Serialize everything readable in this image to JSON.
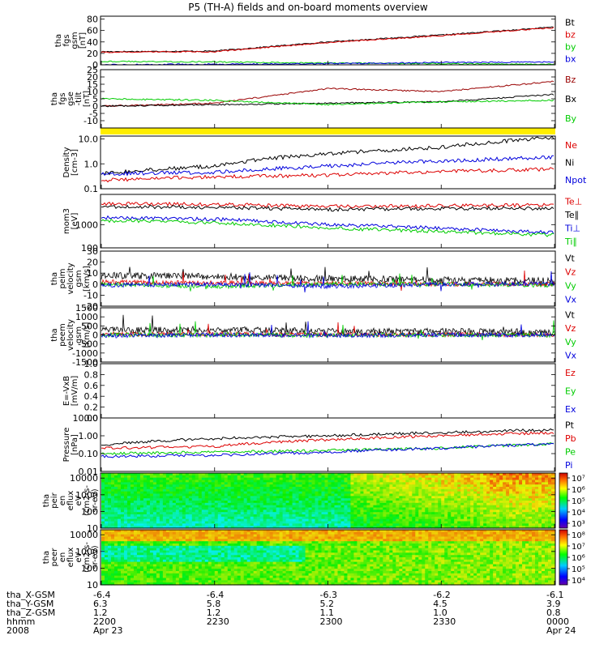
{
  "title": "P5 (TH-A) fields and on-board moments overview",
  "colors": {
    "black": "#000000",
    "red": "#dd0000",
    "green": "#00cc00",
    "blue": "#0000dd",
    "darkred": "#990000",
    "yellow": "#ffee00"
  },
  "chart_data": [
    {
      "id": "p1",
      "type": "line",
      "ylabel": [
        "tha",
        "fgs",
        "gsm",
        "[nT]"
      ],
      "ylim": [
        0,
        85
      ],
      "scale": "linear",
      "ticks": [
        "80",
        "60",
        "40",
        "20",
        "0"
      ],
      "tick_values": [
        80,
        60,
        40,
        20,
        0
      ],
      "x": [
        "2200",
        "2230",
        "2300",
        "2330",
        "0000"
      ],
      "series": [
        {
          "name": "Bt",
          "color": "black",
          "values": [
            23,
            24,
            40,
            52,
            66
          ]
        },
        {
          "name": "bz",
          "color": "red",
          "values": [
            22,
            23,
            39,
            51,
            65
          ]
        },
        {
          "name": "by",
          "color": "green",
          "values": [
            6,
            5,
            3,
            2,
            1
          ]
        },
        {
          "name": "bx",
          "color": "blue",
          "values": [
            0,
            1,
            2,
            4,
            5
          ]
        }
      ]
    },
    {
      "id": "p2",
      "type": "line",
      "ylabel": [
        "tha",
        "fgs",
        "gse",
        "-tilt",
        "[nT]"
      ],
      "ylim": [
        -15,
        25
      ],
      "scale": "linear",
      "ticks": [
        "25",
        "20",
        "15",
        "10",
        "5",
        "0",
        "-5",
        "-10"
      ],
      "tick_values": [
        25,
        20,
        15,
        10,
        5,
        0,
        -5,
        -10
      ],
      "x": [
        "2200",
        "2230",
        "2300",
        "2330",
        "0000"
      ],
      "series": [
        {
          "name": "Bz",
          "color": "darkred",
          "values": [
            0,
            2,
            12,
            10,
            17
          ]
        },
        {
          "name": "Bx",
          "color": "black",
          "values": [
            0,
            1,
            2,
            3,
            8
          ]
        },
        {
          "name": "By",
          "color": "green",
          "values": [
            5,
            4,
            1,
            3,
            4
          ]
        }
      ]
    },
    {
      "id": "p3",
      "type": "line",
      "ylabel": [
        "Density",
        "[cm-3]"
      ],
      "ylim": [
        0.1,
        13
      ],
      "scale": "log",
      "ticks": [
        "10.0",
        "1.0",
        "0.1"
      ],
      "tick_values": [
        10,
        1,
        0.1
      ],
      "x": [
        "2200",
        "2230",
        "2300",
        "2330",
        "0000"
      ],
      "series": [
        {
          "name": "Ne",
          "color": "red",
          "values": [
            0.22,
            0.3,
            0.35,
            0.5,
            0.6
          ]
        },
        {
          "name": "Ni",
          "color": "black",
          "values": [
            0.4,
            0.8,
            2.5,
            4.5,
            11
          ]
        },
        {
          "name": "Npot",
          "color": "blue",
          "values": [
            0.4,
            0.45,
            0.8,
            1.3,
            1.8
          ]
        }
      ]
    },
    {
      "id": "p4",
      "type": "line",
      "ylabel": [
        "mom3",
        "[eV]"
      ],
      "ylim": [
        100,
        20000
      ],
      "scale": "log",
      "ticks": [
        "1000",
        "100"
      ],
      "tick_values": [
        1000,
        100
      ],
      "x": [
        "2200",
        "2230",
        "2300",
        "2330",
        "0000"
      ],
      "series": [
        {
          "name": "Te⊥",
          "color": "red",
          "values": [
            8000,
            7500,
            6000,
            6500,
            7000
          ]
        },
        {
          "name": "Te∥",
          "color": "black",
          "values": [
            6000,
            5500,
            4500,
            5000,
            5000
          ]
        },
        {
          "name": "Ti⊥",
          "color": "blue",
          "values": [
            2000,
            1700,
            1000,
            700,
            450
          ]
        },
        {
          "name": "Ti∥",
          "color": "green",
          "values": [
            1500,
            1200,
            700,
            500,
            350
          ]
        }
      ]
    },
    {
      "id": "p5",
      "type": "line",
      "ylabel": [
        "tha",
        "peim",
        "velocity",
        "gsm",
        "[km/s]"
      ],
      "ylim": [
        -20,
        30
      ],
      "scale": "linear",
      "ticks": [
        "30",
        "20",
        "10",
        "0",
        "-10",
        "-20"
      ],
      "tick_values": [
        30,
        20,
        10,
        0,
        -10,
        -20
      ],
      "x": [
        "2200",
        "2230",
        "2300",
        "2330",
        "0000"
      ],
      "series": [
        {
          "name": "Vt",
          "color": "black",
          "values": [
            8,
            7,
            5,
            4,
            3
          ]
        },
        {
          "name": "Vz",
          "color": "red",
          "values": [
            2,
            1,
            1,
            0,
            0
          ]
        },
        {
          "name": "Vy",
          "color": "green",
          "values": [
            0,
            -2,
            0,
            0,
            -1
          ]
        },
        {
          "name": "Vx",
          "color": "blue",
          "values": [
            -1,
            0,
            -2,
            0,
            0
          ]
        }
      ]
    },
    {
      "id": "p6",
      "type": "line",
      "ylabel": [
        "tha",
        "peem",
        "velocity",
        "gsm",
        "[km/s]"
      ],
      "ylim": [
        -1500,
        1500
      ],
      "scale": "linear",
      "ticks": [
        "1500",
        "1000",
        "500",
        "0",
        "-500",
        "-1000",
        "-1500"
      ],
      "tick_values": [
        1500,
        1000,
        500,
        0,
        -500,
        -1000,
        -1500
      ],
      "x": [
        "2200",
        "2230",
        "2300",
        "2330",
        "0000"
      ],
      "series": [
        {
          "name": "Vt",
          "color": "black",
          "values": [
            250,
            300,
            200,
            200,
            150
          ]
        },
        {
          "name": "Vz",
          "color": "red",
          "values": [
            50,
            50,
            20,
            20,
            10
          ]
        },
        {
          "name": "Vy",
          "color": "green",
          "values": [
            0,
            0,
            -20,
            0,
            0
          ]
        },
        {
          "name": "Vx",
          "color": "blue",
          "values": [
            -50,
            0,
            -30,
            0,
            0
          ]
        }
      ]
    },
    {
      "id": "p7",
      "type": "line",
      "ylabel": [
        "E=-VxB",
        "[mV/m]"
      ],
      "ylim": [
        0,
        1
      ],
      "scale": "linear",
      "ticks": [
        "1.0",
        "0.8",
        "0.6",
        "0.4",
        "0.2",
        "0.0"
      ],
      "tick_values": [
        1,
        0.8,
        0.6,
        0.4,
        0.2,
        0
      ],
      "x": [],
      "series": [
        {
          "name": "Ez",
          "color": "red",
          "values": []
        },
        {
          "name": "Ey",
          "color": "green",
          "values": []
        },
        {
          "name": "Ex",
          "color": "blue",
          "values": []
        }
      ]
    },
    {
      "id": "p8",
      "type": "line",
      "ylabel": [
        "Pressure",
        "[nPa]"
      ],
      "ylim": [
        0.01,
        10
      ],
      "scale": "log",
      "ticks": [
        "10.00",
        "1.00",
        "0.10",
        "0.01"
      ],
      "tick_values": [
        10,
        1,
        0.1,
        0.01
      ],
      "x": [
        "2200",
        "2230",
        "2300",
        "2330",
        "0000"
      ],
      "series": [
        {
          "name": "Pt",
          "color": "black",
          "values": [
            0.3,
            0.7,
            1.0,
            1.5,
            2.2
          ]
        },
        {
          "name": "Pb",
          "color": "red",
          "values": [
            0.2,
            0.25,
            0.6,
            1.0,
            1.5
          ]
        },
        {
          "name": "Pe",
          "color": "green",
          "values": [
            0.1,
            0.12,
            0.15,
            0.2,
            0.35
          ]
        },
        {
          "name": "Pi",
          "color": "blue",
          "values": [
            0.07,
            0.08,
            0.12,
            0.2,
            0.35
          ]
        }
      ]
    },
    {
      "id": "p9",
      "type": "heatmap",
      "ylabel": [
        "tha",
        "peir",
        "en",
        "eflux",
        "eV",
        "(cm2-s-",
        "sr-eV)"
      ],
      "ylim": [
        10,
        20000
      ],
      "scale": "log",
      "ticks": [
        "10000",
        "1000",
        "100",
        "10"
      ],
      "tick_values": [
        10000,
        1000,
        100,
        10
      ],
      "colorbar": {
        "ticks": [
          "10⁷",
          "10⁶",
          "10⁵",
          "10⁴",
          "10³"
        ],
        "min_exp": 3,
        "max_exp": 7
      }
    },
    {
      "id": "p10",
      "type": "heatmap",
      "ylabel": [
        "tha",
        "peer",
        "en",
        "eflux",
        "eV",
        "(cm2-s-",
        "sr-eV)"
      ],
      "ylim": [
        10,
        20000
      ],
      "scale": "log",
      "ticks": [
        "10000",
        "1000",
        "100",
        "10"
      ],
      "tick_values": [
        10000,
        1000,
        100,
        10
      ],
      "colorbar": {
        "ticks": [
          "10⁸",
          "10⁷",
          "10⁶",
          "10⁵",
          "10⁴"
        ],
        "min_exp": 4,
        "max_exp": 8
      }
    }
  ],
  "xaxis": {
    "rows": [
      {
        "label": "tha_X-GSM",
        "values": [
          "-6.4",
          "-6.4",
          "-6.3",
          "-6.2",
          "-6.1"
        ]
      },
      {
        "label": "tha_Y-GSM",
        "values": [
          "6.3",
          "5.8",
          "5.2",
          "4.5",
          "3.9"
        ]
      },
      {
        "label": "tha_Z-GSM",
        "values": [
          "1.2",
          "1.2",
          "1.1",
          "1.0",
          "0.8"
        ]
      },
      {
        "label": "hhmm",
        "values": [
          "2200",
          "2230",
          "2300",
          "2330",
          "0000"
        ]
      },
      {
        "label": "2008",
        "values": [
          "Apr 23",
          "",
          "",
          "",
          "Apr 24"
        ]
      }
    ]
  }
}
